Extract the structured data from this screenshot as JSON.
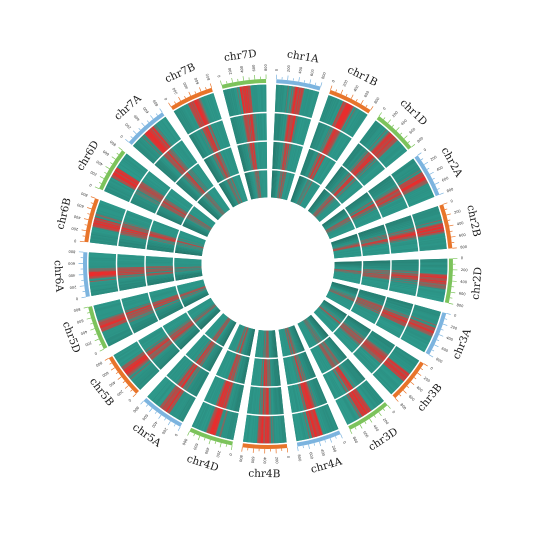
{
  "chromosomes": [
    {
      "id": "chr1A",
      "genome": "A"
    },
    {
      "id": "chr1B",
      "genome": "B"
    },
    {
      "id": "chr1D",
      "genome": "D"
    },
    {
      "id": "chr2A",
      "genome": "A"
    },
    {
      "id": "chr2B",
      "genome": "B"
    },
    {
      "id": "chr2D",
      "genome": "D"
    },
    {
      "id": "chr3A",
      "genome": "A"
    },
    {
      "id": "chr3B",
      "genome": "B"
    },
    {
      "id": "chr3D",
      "genome": "D"
    },
    {
      "id": "chr4A",
      "genome": "A"
    },
    {
      "id": "chr4B",
      "genome": "B"
    },
    {
      "id": "chr4D",
      "genome": "D"
    },
    {
      "id": "chr5A",
      "genome": "A"
    },
    {
      "id": "chr5B",
      "genome": "B"
    },
    {
      "id": "chr5D",
      "genome": "D"
    },
    {
      "id": "chr6A",
      "genome": "A"
    },
    {
      "id": "chr6B",
      "genome": "B"
    },
    {
      "id": "chr6D",
      "genome": "D"
    },
    {
      "id": "chr7A",
      "genome": "A"
    },
    {
      "id": "chr7B",
      "genome": "B"
    },
    {
      "id": "chr7D",
      "genome": "D"
    }
  ],
  "genome_colors": {
    "A": "#7cb4df",
    "B": "#e8742a",
    "D": "#7cc35b"
  },
  "track_colors": {
    "low": "#2e9a8c",
    "high": "#ee2a2a",
    "dark": "#1f5a50"
  },
  "tick_labels": [
    "0",
    "100",
    "200",
    "300",
    "400",
    "500",
    "600",
    "700",
    "800"
  ],
  "track_count": 4
}
